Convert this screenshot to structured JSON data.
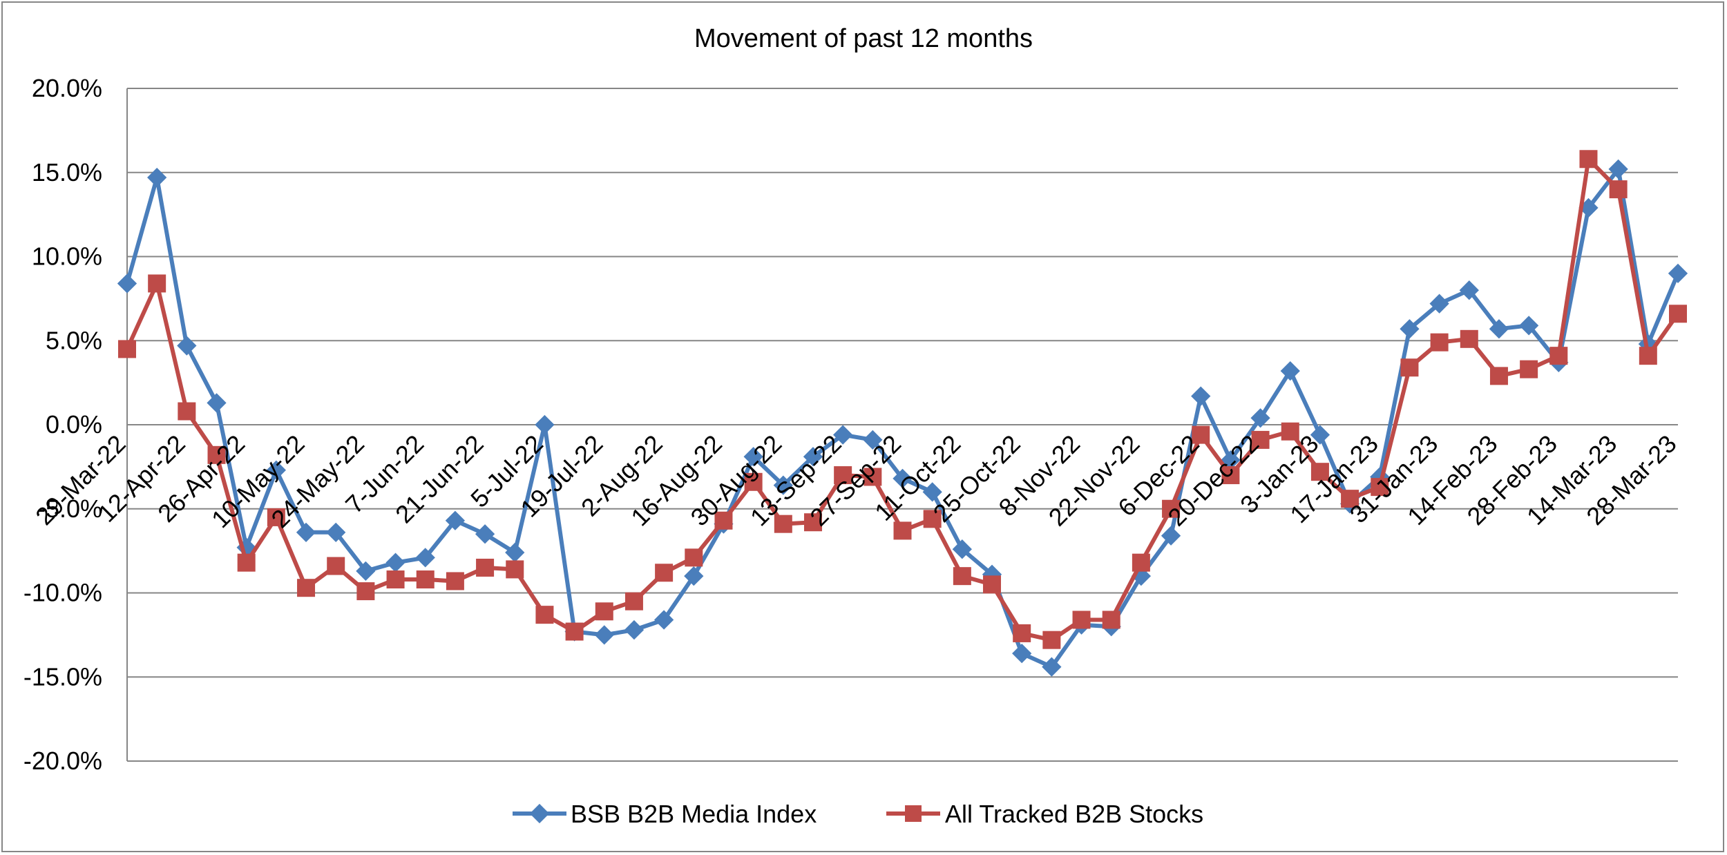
{
  "chart_data": {
    "type": "line",
    "title": "Movement of past 12 months",
    "xlabel": "",
    "ylabel": "",
    "ylim": [
      -20,
      20
    ],
    "yticks": [
      "-20.0%",
      "-15.0%",
      "-10.0%",
      "-5.0%",
      "0.0%",
      "5.0%",
      "10.0%",
      "15.0%",
      "20.0%"
    ],
    "ytick_values": [
      -20,
      -15,
      -10,
      -5,
      0,
      5,
      10,
      15,
      20
    ],
    "grid": true,
    "legend_position": "bottom",
    "x_tick_labels": [
      "29-Mar-22",
      "12-Apr-22",
      "26-Apr-22",
      "10-May-22",
      "24-May-22",
      "7-Jun-22",
      "21-Jun-22",
      "5-Jul-22",
      "19-Jul-22",
      "2-Aug-22",
      "16-Aug-22",
      "30-Aug-22",
      "13-Sep-22",
      "27-Sep-22",
      "11-Oct-22",
      "25-Oct-22",
      "8-Nov-22",
      "22-Nov-22",
      "6-Dec-22",
      "20-Dec-22",
      "3-Jan-23",
      "17-Jan-23",
      "31-Jan-23",
      "14-Feb-23",
      "28-Feb-23",
      "14-Mar-23",
      "28-Mar-23"
    ],
    "x": [
      "29-Mar-22",
      "5-Apr-22",
      "12-Apr-22",
      "19-Apr-22",
      "26-Apr-22",
      "3-May-22",
      "10-May-22",
      "17-May-22",
      "24-May-22",
      "31-May-22",
      "7-Jun-22",
      "14-Jun-22",
      "21-Jun-22",
      "28-Jun-22",
      "5-Jul-22",
      "12-Jul-22",
      "19-Jul-22",
      "26-Jul-22",
      "2-Aug-22",
      "9-Aug-22",
      "16-Aug-22",
      "23-Aug-22",
      "30-Aug-22",
      "6-Sep-22",
      "13-Sep-22",
      "20-Sep-22",
      "27-Sep-22",
      "4-Oct-22",
      "11-Oct-22",
      "18-Oct-22",
      "25-Oct-22",
      "1-Nov-22",
      "8-Nov-22",
      "15-Nov-22",
      "22-Nov-22",
      "29-Nov-22",
      "6-Dec-22",
      "13-Dec-22",
      "20-Dec-22",
      "27-Dec-22",
      "3-Jan-23",
      "10-Jan-23",
      "17-Jan-23",
      "24-Jan-23",
      "31-Jan-23",
      "7-Feb-23",
      "14-Feb-23",
      "21-Feb-23",
      "28-Feb-23",
      "7-Mar-23",
      "14-Mar-23",
      "21-Mar-23",
      "28-Mar-23"
    ],
    "series": [
      {
        "name": "BSB B2B Media Index",
        "color": "#4a7ebb",
        "marker": "diamond",
        "values": [
          8.4,
          14.7,
          4.7,
          1.3,
          -7.3,
          -2.7,
          -6.4,
          -6.4,
          -8.7,
          -8.2,
          -7.9,
          -5.7,
          -6.5,
          -7.6,
          0.0,
          -12.3,
          -12.5,
          -12.2,
          -11.6,
          -9.0,
          -5.9,
          -1.9,
          -3.6,
          -1.9,
          -0.6,
          -0.9,
          -3.2,
          -4.0,
          -7.4,
          -8.9,
          -13.6,
          -14.4,
          -11.9,
          -12.0,
          -9.0,
          -6.6,
          1.7,
          -2.1,
          0.4,
          3.2,
          -0.6,
          -4.7,
          -3.1,
          5.7,
          7.2,
          8.0,
          5.7,
          5.9,
          3.7,
          12.9,
          15.2,
          4.8,
          9.0
        ]
      },
      {
        "name": "All Tracked B2B Stocks",
        "color": "#be4b48",
        "marker": "square",
        "values": [
          4.5,
          8.4,
          0.8,
          -1.8,
          -8.2,
          -5.5,
          -9.7,
          -8.4,
          -9.9,
          -9.2,
          -9.2,
          -9.3,
          -8.5,
          -8.6,
          -11.3,
          -12.3,
          -11.1,
          -10.5,
          -8.8,
          -7.9,
          -5.7,
          -3.4,
          -5.9,
          -5.8,
          -3.0,
          -3.1,
          -6.3,
          -5.6,
          -9.0,
          -9.5,
          -12.4,
          -12.8,
          -11.6,
          -11.6,
          -8.2,
          -5.0,
          -0.6,
          -3.0,
          -0.9,
          -0.4,
          -2.8,
          -4.4,
          -3.7,
          3.4,
          4.9,
          5.1,
          2.9,
          3.3,
          4.1,
          15.8,
          14.0,
          4.1,
          6.6
        ]
      }
    ]
  }
}
